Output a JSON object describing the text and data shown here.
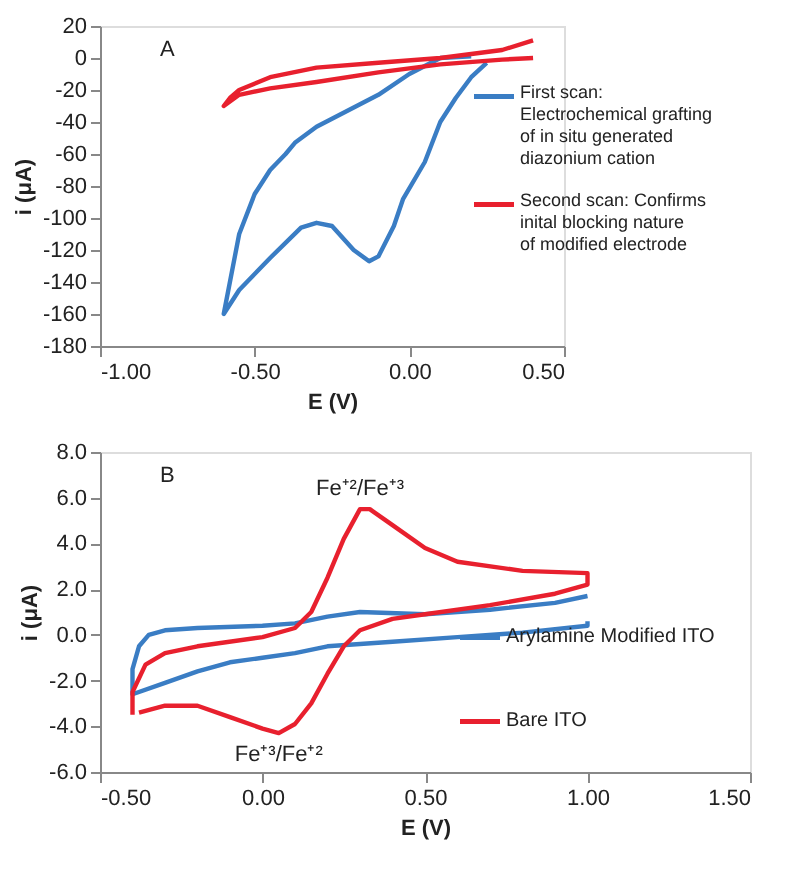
{
  "chart_data": [
    {
      "type": "line",
      "xlabel": "E (V)",
      "ylabel": "i (μA)",
      "annotations": [
        "A"
      ],
      "xlim": [
        -1.0,
        0.5
      ],
      "xticks": [
        {
          "value": -1.0,
          "label": "-1.00"
        },
        {
          "value": -0.5,
          "label": "-0.50"
        },
        {
          "value": 0,
          "label": "0.00"
        },
        {
          "value": 0.5,
          "label": "0.50"
        }
      ],
      "ylim": [
        -180,
        20
      ],
      "yticks": [
        -180,
        -160,
        -140,
        -120,
        -100,
        -80,
        -60,
        -40,
        -20,
        0,
        20
      ],
      "grid": false,
      "legend": "right",
      "marker": "none",
      "line_style": "solid",
      "series": [
        {
          "name": "First scan: Electrochemical grafting of in situ generated diazonium cation",
          "color": "#3a7dc4",
          "x": [
            0.25,
            0.2,
            0.15,
            0.1,
            0.05,
            -0.02,
            -0.05,
            -0.1,
            -0.13,
            -0.18,
            -0.25,
            -0.3,
            -0.35,
            -0.45,
            -0.55,
            -0.6,
            -0.55,
            -0.5,
            -0.45,
            -0.4,
            -0.37,
            -0.3,
            -0.2,
            -0.1,
            0.0,
            0.1,
            0.2
          ],
          "values": [
            -3,
            -12,
            -25,
            -40,
            -65,
            -88,
            -105,
            -124,
            -127,
            -120,
            -105,
            -103,
            -106,
            -125,
            -145,
            -160,
            -110,
            -85,
            -70,
            -60,
            -53,
            -43,
            -33,
            -23,
            -10,
            0,
            1
          ]
        },
        {
          "name": "Second scan: Confirms inital blocking nature of modified electrode",
          "color": "#e8202e",
          "x": [
            0.4,
            0.3,
            0.1,
            -0.1,
            -0.3,
            -0.45,
            -0.55,
            -0.6,
            -0.58,
            -0.55,
            -0.45,
            -0.3,
            -0.1,
            0.1,
            0.3,
            0.4
          ],
          "values": [
            0,
            -1,
            -4,
            -9,
            -15,
            -19,
            -23,
            -30,
            -25,
            -20,
            -12,
            -6,
            -3,
            0,
            5,
            11
          ]
        }
      ]
    },
    {
      "type": "line",
      "xlabel": "E (V)",
      "ylabel": "i (μA)",
      "annotations": [
        "B",
        {
          "text": "Fe⁺²/Fe⁺³",
          "x": 0.3,
          "y": 5.5
        },
        {
          "text": "Fe⁺³/Fe⁺²",
          "x": 0.05,
          "y": -4.3
        }
      ],
      "xlim": [
        -0.5,
        1.5
      ],
      "xticks": [
        {
          "value": -0.5,
          "label": "-0.50"
        },
        {
          "value": 0,
          "label": "0.00"
        },
        {
          "value": 0.5,
          "label": "0.50"
        },
        {
          "value": 1.0,
          "label": "1.00"
        },
        {
          "value": 1.5,
          "label": "1.50"
        }
      ],
      "ylim": [
        -6,
        8
      ],
      "yticks": [
        {
          "value": -6,
          "label": "-6.0"
        },
        {
          "value": -4,
          "label": "-4.0"
        },
        {
          "value": -2,
          "label": "-2.0"
        },
        {
          "value": 0,
          "label": "0.0"
        },
        {
          "value": 2,
          "label": "2.0"
        },
        {
          "value": 4,
          "label": "4.0"
        },
        {
          "value": 6,
          "label": "6.0"
        },
        {
          "value": 8,
          "label": "8.0"
        }
      ],
      "grid": false,
      "legend": "bottom right",
      "marker": "none",
      "line_style": "solid",
      "series": [
        {
          "name": "Arylamine Modified ITO",
          "color": "#3a7dc4",
          "x": [
            1.0,
            1.0,
            0.8,
            0.6,
            0.4,
            0.2,
            0.1,
            0.0,
            -0.1,
            -0.2,
            -0.3,
            -0.4,
            -0.4,
            -0.38,
            -0.35,
            -0.3,
            -0.2,
            0.0,
            0.1,
            0.2,
            0.3,
            0.5,
            0.7,
            0.9,
            1.0
          ],
          "values": [
            0.6,
            0.4,
            0.1,
            -0.1,
            -0.3,
            -0.5,
            -0.8,
            -1.0,
            -1.2,
            -1.6,
            -2.1,
            -2.6,
            -1.5,
            -0.5,
            0.0,
            0.2,
            0.3,
            0.4,
            0.5,
            0.8,
            1.0,
            0.9,
            1.1,
            1.4,
            1.7
          ]
        },
        {
          "name": "Bare ITO",
          "color": "#e8202e",
          "x": [
            -0.4,
            -0.4,
            -0.36,
            -0.3,
            -0.2,
            0.0,
            0.1,
            0.15,
            0.2,
            0.25,
            0.3,
            0.33,
            0.4,
            0.5,
            0.6,
            0.8,
            1.0,
            1.0,
            0.9,
            0.7,
            0.5,
            0.4,
            0.3,
            0.25,
            0.2,
            0.15,
            0.1,
            0.05,
            0.0,
            -0.1,
            -0.2,
            -0.3,
            -0.38
          ],
          "values": [
            -3.5,
            -2.5,
            -1.3,
            -0.8,
            -0.5,
            -0.1,
            0.3,
            1.0,
            2.5,
            4.2,
            5.5,
            5.5,
            4.8,
            3.8,
            3.2,
            2.8,
            2.7,
            2.2,
            1.8,
            1.3,
            0.9,
            0.7,
            0.2,
            -0.5,
            -1.7,
            -3.0,
            -3.9,
            -4.3,
            -4.1,
            -3.6,
            -3.1,
            -3.1,
            -3.4
          ]
        }
      ]
    }
  ]
}
